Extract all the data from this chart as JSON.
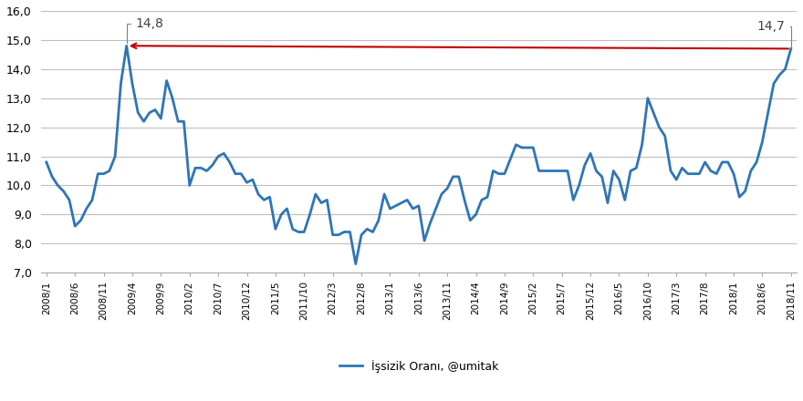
{
  "monthly_data": [
    10.8,
    10.3,
    10.0,
    9.8,
    9.5,
    8.6,
    8.8,
    9.2,
    9.5,
    10.4,
    10.4,
    10.5,
    11.0,
    13.5,
    14.8,
    13.5,
    12.5,
    12.2,
    12.5,
    12.6,
    12.3,
    13.6,
    13.0,
    12.2,
    12.2,
    10.0,
    10.6,
    10.6,
    10.5,
    10.7,
    11.0,
    11.1,
    10.8,
    10.4,
    10.4,
    10.1,
    10.2,
    9.7,
    9.5,
    9.6,
    8.5,
    9.0,
    9.2,
    8.5,
    8.4,
    8.4,
    9.0,
    9.7,
    9.4,
    9.5,
    8.3,
    8.3,
    8.4,
    8.4,
    7.3,
    8.3,
    8.5,
    8.4,
    8.8,
    9.7,
    9.2,
    9.3,
    9.4,
    9.5,
    9.2,
    9.3,
    8.1,
    8.7,
    9.2,
    9.7,
    9.9,
    10.3,
    10.3,
    9.5,
    8.8,
    9.0,
    9.5,
    9.6,
    10.5,
    10.4,
    10.4,
    10.9,
    11.4,
    11.3,
    11.3,
    11.3,
    10.5,
    10.5,
    10.5,
    10.5,
    10.5,
    10.5,
    9.5,
    10.0,
    10.7,
    11.1,
    10.5,
    10.3,
    9.4,
    10.5,
    10.2,
    9.5,
    10.5,
    10.6,
    11.4,
    13.0,
    12.5,
    12.0,
    11.7,
    10.5,
    10.2,
    10.6,
    10.4,
    10.4,
    10.4,
    10.8,
    10.5,
    10.4,
    10.8,
    10.8,
    10.4,
    9.6,
    9.8,
    10.5,
    10.8,
    11.5,
    12.5,
    13.5,
    13.8,
    14.0,
    14.7
  ],
  "ylim": [
    7.0,
    16.0
  ],
  "yticks": [
    7.0,
    8.0,
    9.0,
    10.0,
    11.0,
    12.0,
    13.0,
    14.0,
    15.0,
    16.0
  ],
  "line_color": "#2E75B6",
  "line_width": 2.0,
  "arrow_color": "#C00000",
  "peak1_label": "14,8",
  "peak2_label": "14,7",
  "legend_label": "İşsizik Oranı, @umitak",
  "background_color": "#ffffff",
  "grid_color": "#bfbfbf"
}
